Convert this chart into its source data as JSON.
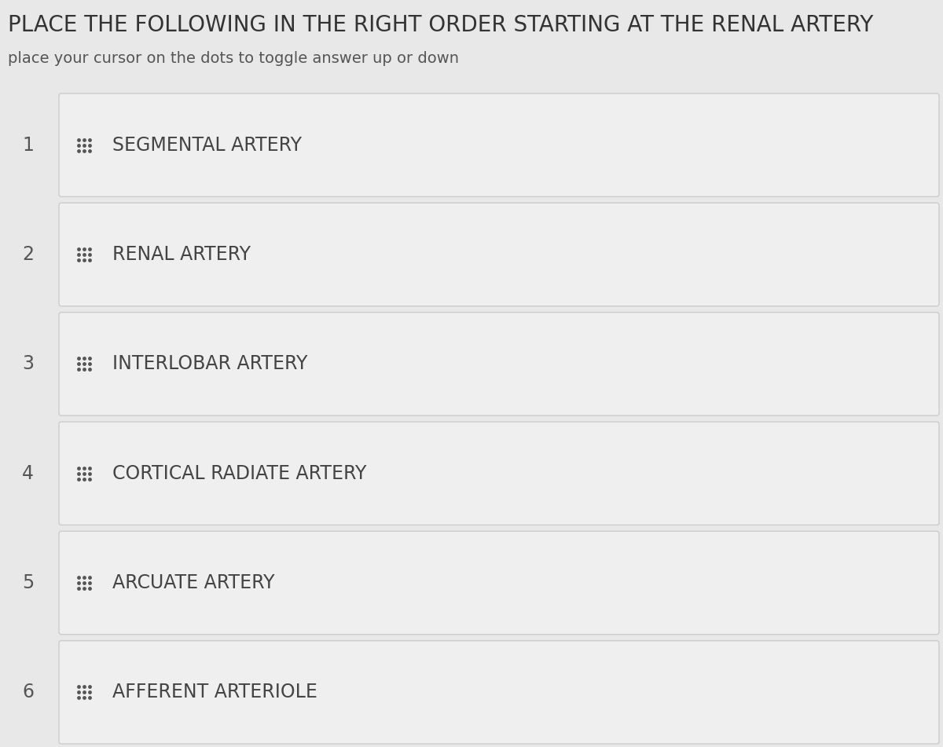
{
  "title": "PLACE THE FOLLOWING IN THE RIGHT ORDER STARTING AT THE RENAL ARTERY",
  "subtitle": "place your cursor on the dots to toggle answer up or down",
  "items": [
    {
      "number": "1",
      "text": "SEGMENTAL ARTERY"
    },
    {
      "number": "2",
      "text": "RENAL ARTERY"
    },
    {
      "number": "3",
      "text": "INTERLOBAR ARTERY"
    },
    {
      "number": "4",
      "text": "CORTICAL RADIATE ARTERY"
    },
    {
      "number": "5",
      "text": "ARCUATE ARTERY"
    },
    {
      "number": "6",
      "text": "AFFERENT ARTERIOLE"
    }
  ],
  "bg_color": "#e8e8e8",
  "row_bg_color": "#efefef",
  "row_border_color": "#cccccc",
  "number_color": "#555555",
  "text_color": "#444444",
  "title_color": "#333333",
  "subtitle_color": "#555555",
  "dot_color": "#555555",
  "figsize": [
    12.0,
    9.51
  ],
  "dpi": 100
}
